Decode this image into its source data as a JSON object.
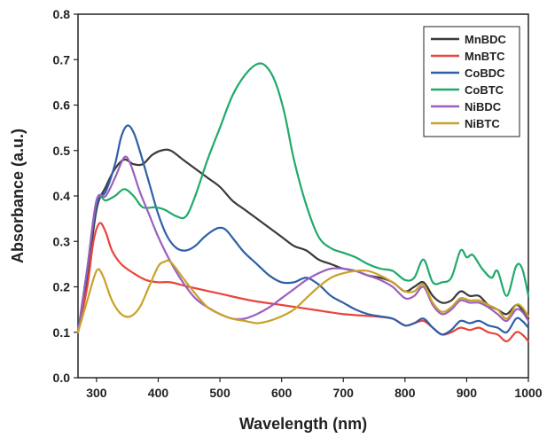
{
  "chart_data": {
    "type": "line",
    "title": "",
    "xlabel": "Wavelength (nm)",
    "ylabel": "Absorbance (a.u.)",
    "xlim": [
      270,
      1000
    ],
    "ylim": [
      0.0,
      0.8
    ],
    "x_ticks": [
      300,
      400,
      500,
      600,
      700,
      800,
      900,
      1000
    ],
    "x_tick_labels": [
      "300",
      "400",
      "500",
      "600",
      "700",
      "800",
      "900",
      "1000"
    ],
    "y_ticks": [
      0.0,
      0.1,
      0.2,
      0.3,
      0.4,
      0.5,
      0.6,
      0.7,
      0.8
    ],
    "y_tick_labels": [
      "0.0",
      "0.1",
      "0.2",
      "0.3",
      "0.4",
      "0.5",
      "0.6",
      "0.7",
      "0.8"
    ],
    "grid": false,
    "legend_position": "top-right",
    "series": [
      {
        "name": "MnBDC",
        "color": "#3a3a3a",
        "points": [
          [
            270,
            0.1
          ],
          [
            285,
            0.22
          ],
          [
            300,
            0.37
          ],
          [
            315,
            0.42
          ],
          [
            330,
            0.46
          ],
          [
            345,
            0.48
          ],
          [
            360,
            0.47
          ],
          [
            375,
            0.47
          ],
          [
            390,
            0.49
          ],
          [
            405,
            0.5
          ],
          [
            420,
            0.5
          ],
          [
            440,
            0.48
          ],
          [
            460,
            0.46
          ],
          [
            480,
            0.44
          ],
          [
            500,
            0.42
          ],
          [
            520,
            0.39
          ],
          [
            540,
            0.37
          ],
          [
            560,
            0.35
          ],
          [
            580,
            0.33
          ],
          [
            600,
            0.31
          ],
          [
            620,
            0.29
          ],
          [
            640,
            0.28
          ],
          [
            660,
            0.26
          ],
          [
            680,
            0.25
          ],
          [
            700,
            0.24
          ],
          [
            720,
            0.235
          ],
          [
            740,
            0.225
          ],
          [
            760,
            0.22
          ],
          [
            780,
            0.21
          ],
          [
            800,
            0.19
          ],
          [
            815,
            0.2
          ],
          [
            830,
            0.21
          ],
          [
            845,
            0.18
          ],
          [
            860,
            0.165
          ],
          [
            875,
            0.17
          ],
          [
            890,
            0.19
          ],
          [
            905,
            0.18
          ],
          [
            920,
            0.18
          ],
          [
            935,
            0.16
          ],
          [
            950,
            0.15
          ],
          [
            965,
            0.14
          ],
          [
            980,
            0.16
          ],
          [
            990,
            0.15
          ],
          [
            1000,
            0.13
          ]
        ]
      },
      {
        "name": "MnBTC",
        "color": "#e8453c",
        "points": [
          [
            270,
            0.1
          ],
          [
            285,
            0.2
          ],
          [
            295,
            0.3
          ],
          [
            305,
            0.34
          ],
          [
            315,
            0.32
          ],
          [
            325,
            0.28
          ],
          [
            340,
            0.25
          ],
          [
            360,
            0.23
          ],
          [
            380,
            0.215
          ],
          [
            400,
            0.21
          ],
          [
            420,
            0.21
          ],
          [
            450,
            0.2
          ],
          [
            500,
            0.185
          ],
          [
            550,
            0.17
          ],
          [
            600,
            0.16
          ],
          [
            650,
            0.15
          ],
          [
            700,
            0.14
          ],
          [
            750,
            0.135
          ],
          [
            780,
            0.13
          ],
          [
            800,
            0.115
          ],
          [
            815,
            0.12
          ],
          [
            830,
            0.125
          ],
          [
            845,
            0.11
          ],
          [
            860,
            0.095
          ],
          [
            875,
            0.1
          ],
          [
            890,
            0.11
          ],
          [
            905,
            0.105
          ],
          [
            920,
            0.11
          ],
          [
            935,
            0.1
          ],
          [
            950,
            0.095
          ],
          [
            965,
            0.08
          ],
          [
            980,
            0.1
          ],
          [
            990,
            0.095
          ],
          [
            1000,
            0.08
          ]
        ]
      },
      {
        "name": "CoBDC",
        "color": "#2e5fa8",
        "points": [
          [
            270,
            0.1
          ],
          [
            285,
            0.24
          ],
          [
            300,
            0.38
          ],
          [
            315,
            0.41
          ],
          [
            330,
            0.47
          ],
          [
            340,
            0.53
          ],
          [
            350,
            0.555
          ],
          [
            360,
            0.54
          ],
          [
            370,
            0.5
          ],
          [
            385,
            0.43
          ],
          [
            400,
            0.36
          ],
          [
            415,
            0.31
          ],
          [
            430,
            0.285
          ],
          [
            445,
            0.28
          ],
          [
            460,
            0.29
          ],
          [
            475,
            0.31
          ],
          [
            490,
            0.325
          ],
          [
            500,
            0.33
          ],
          [
            510,
            0.325
          ],
          [
            525,
            0.3
          ],
          [
            540,
            0.275
          ],
          [
            560,
            0.25
          ],
          [
            580,
            0.225
          ],
          [
            600,
            0.21
          ],
          [
            620,
            0.21
          ],
          [
            640,
            0.22
          ],
          [
            660,
            0.205
          ],
          [
            680,
            0.18
          ],
          [
            700,
            0.165
          ],
          [
            720,
            0.15
          ],
          [
            740,
            0.14
          ],
          [
            760,
            0.135
          ],
          [
            780,
            0.13
          ],
          [
            800,
            0.115
          ],
          [
            815,
            0.12
          ],
          [
            830,
            0.13
          ],
          [
            845,
            0.11
          ],
          [
            860,
            0.095
          ],
          [
            875,
            0.105
          ],
          [
            890,
            0.125
          ],
          [
            905,
            0.12
          ],
          [
            920,
            0.125
          ],
          [
            935,
            0.115
          ],
          [
            950,
            0.11
          ],
          [
            965,
            0.1
          ],
          [
            980,
            0.13
          ],
          [
            990,
            0.125
          ],
          [
            1000,
            0.11
          ]
        ]
      },
      {
        "name": "CoBTC",
        "color": "#1faa6a",
        "points": [
          [
            270,
            0.1
          ],
          [
            285,
            0.24
          ],
          [
            300,
            0.39
          ],
          [
            315,
            0.39
          ],
          [
            330,
            0.4
          ],
          [
            345,
            0.415
          ],
          [
            360,
            0.4
          ],
          [
            375,
            0.375
          ],
          [
            395,
            0.375
          ],
          [
            410,
            0.37
          ],
          [
            430,
            0.355
          ],
          [
            445,
            0.355
          ],
          [
            460,
            0.4
          ],
          [
            480,
            0.48
          ],
          [
            500,
            0.55
          ],
          [
            520,
            0.62
          ],
          [
            540,
            0.665
          ],
          [
            560,
            0.69
          ],
          [
            575,
            0.685
          ],
          [
            590,
            0.65
          ],
          [
            605,
            0.58
          ],
          [
            620,
            0.48
          ],
          [
            640,
            0.38
          ],
          [
            660,
            0.31
          ],
          [
            680,
            0.285
          ],
          [
            700,
            0.275
          ],
          [
            720,
            0.265
          ],
          [
            740,
            0.25
          ],
          [
            760,
            0.24
          ],
          [
            780,
            0.235
          ],
          [
            800,
            0.215
          ],
          [
            815,
            0.22
          ],
          [
            830,
            0.26
          ],
          [
            845,
            0.21
          ],
          [
            860,
            0.21
          ],
          [
            875,
            0.22
          ],
          [
            890,
            0.28
          ],
          [
            900,
            0.265
          ],
          [
            910,
            0.27
          ],
          [
            925,
            0.24
          ],
          [
            940,
            0.22
          ],
          [
            950,
            0.235
          ],
          [
            965,
            0.18
          ],
          [
            980,
            0.245
          ],
          [
            990,
            0.24
          ],
          [
            1000,
            0.18
          ]
        ]
      },
      {
        "name": "NiBDC",
        "color": "#9b5fc0",
        "points": [
          [
            270,
            0.1
          ],
          [
            285,
            0.24
          ],
          [
            300,
            0.39
          ],
          [
            315,
            0.4
          ],
          [
            330,
            0.44
          ],
          [
            345,
            0.485
          ],
          [
            355,
            0.47
          ],
          [
            370,
            0.41
          ],
          [
            385,
            0.36
          ],
          [
            400,
            0.31
          ],
          [
            420,
            0.255
          ],
          [
            440,
            0.21
          ],
          [
            460,
            0.175
          ],
          [
            480,
            0.155
          ],
          [
            500,
            0.14
          ],
          [
            520,
            0.13
          ],
          [
            540,
            0.13
          ],
          [
            560,
            0.14
          ],
          [
            580,
            0.155
          ],
          [
            600,
            0.175
          ],
          [
            620,
            0.195
          ],
          [
            640,
            0.215
          ],
          [
            660,
            0.23
          ],
          [
            680,
            0.24
          ],
          [
            700,
            0.24
          ],
          [
            720,
            0.235
          ],
          [
            740,
            0.225
          ],
          [
            760,
            0.215
          ],
          [
            780,
            0.2
          ],
          [
            800,
            0.175
          ],
          [
            815,
            0.18
          ],
          [
            830,
            0.2
          ],
          [
            845,
            0.16
          ],
          [
            860,
            0.14
          ],
          [
            875,
            0.15
          ],
          [
            890,
            0.17
          ],
          [
            905,
            0.165
          ],
          [
            920,
            0.165
          ],
          [
            935,
            0.155
          ],
          [
            950,
            0.14
          ],
          [
            965,
            0.125
          ],
          [
            980,
            0.15
          ],
          [
            990,
            0.145
          ],
          [
            1000,
            0.125
          ]
        ]
      },
      {
        "name": "NiBTC",
        "color": "#c9a227",
        "points": [
          [
            270,
            0.1
          ],
          [
            285,
            0.17
          ],
          [
            300,
            0.235
          ],
          [
            310,
            0.225
          ],
          [
            325,
            0.17
          ],
          [
            340,
            0.14
          ],
          [
            355,
            0.135
          ],
          [
            370,
            0.155
          ],
          [
            385,
            0.2
          ],
          [
            400,
            0.245
          ],
          [
            410,
            0.255
          ],
          [
            420,
            0.255
          ],
          [
            440,
            0.22
          ],
          [
            460,
            0.185
          ],
          [
            480,
            0.155
          ],
          [
            500,
            0.14
          ],
          [
            520,
            0.13
          ],
          [
            540,
            0.125
          ],
          [
            560,
            0.12
          ],
          [
            580,
            0.125
          ],
          [
            600,
            0.135
          ],
          [
            620,
            0.15
          ],
          [
            640,
            0.175
          ],
          [
            660,
            0.2
          ],
          [
            680,
            0.22
          ],
          [
            700,
            0.23
          ],
          [
            720,
            0.235
          ],
          [
            740,
            0.235
          ],
          [
            760,
            0.225
          ],
          [
            780,
            0.21
          ],
          [
            800,
            0.19
          ],
          [
            815,
            0.19
          ],
          [
            830,
            0.205
          ],
          [
            845,
            0.165
          ],
          [
            860,
            0.145
          ],
          [
            875,
            0.155
          ],
          [
            890,
            0.175
          ],
          [
            905,
            0.17
          ],
          [
            920,
            0.17
          ],
          [
            935,
            0.16
          ],
          [
            950,
            0.15
          ],
          [
            965,
            0.13
          ],
          [
            980,
            0.16
          ],
          [
            990,
            0.155
          ],
          [
            1000,
            0.135
          ]
        ]
      }
    ]
  }
}
